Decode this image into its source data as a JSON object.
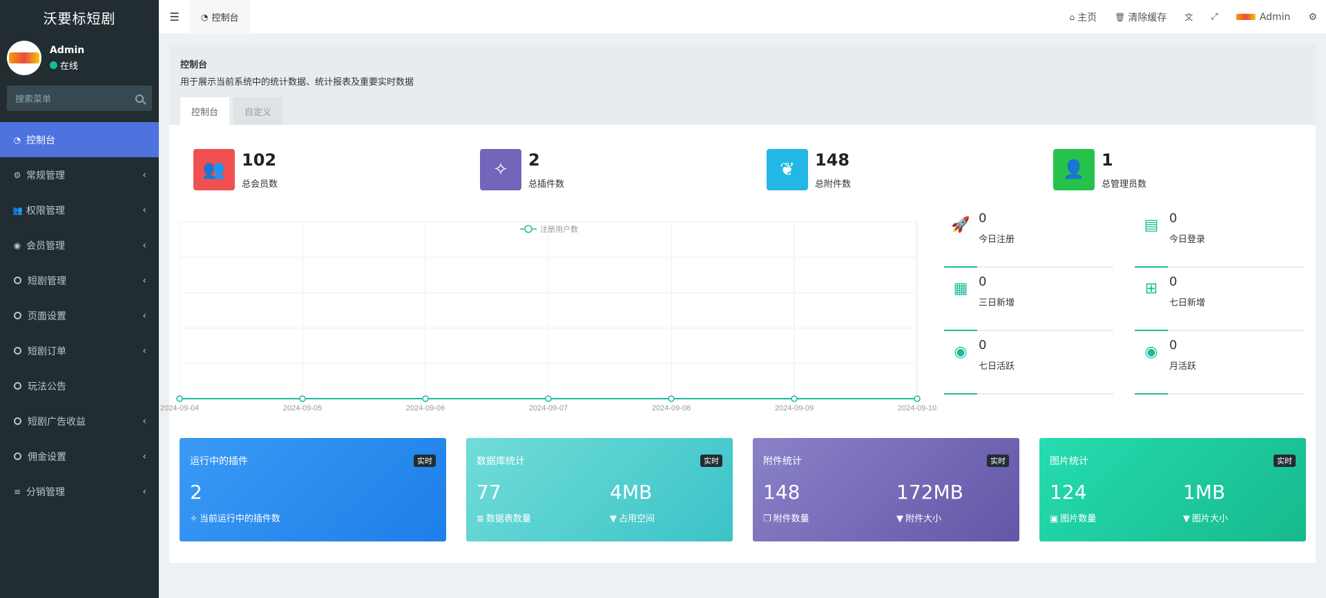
{
  "brand": "沃要标短剧",
  "user": {
    "name": "Admin",
    "status": "在线"
  },
  "search_placeholder": "搜索菜单",
  "menu": [
    {
      "label": "控制台",
      "icon": "dashboard-icon",
      "active": true,
      "chevron": false
    },
    {
      "label": "常规管理",
      "icon": "cogs-icon",
      "chevron": true
    },
    {
      "label": "权限管理",
      "icon": "group-icon",
      "chevron": true
    },
    {
      "label": "会员管理",
      "icon": "user-circle-icon",
      "chevron": true
    },
    {
      "label": "短剧管理",
      "icon": "circle-icon",
      "chevron": true
    },
    {
      "label": "页面设置",
      "icon": "circle-icon",
      "chevron": true
    },
    {
      "label": "短剧订单",
      "icon": "circle-icon",
      "chevron": true
    },
    {
      "label": "玩法公告",
      "icon": "circle-icon",
      "chevron": false
    },
    {
      "label": "短剧广告收益",
      "icon": "circle-icon",
      "chevron": true
    },
    {
      "label": "佣金设置",
      "icon": "circle-icon",
      "chevron": true
    },
    {
      "label": "分销管理",
      "icon": "list-icon",
      "chevron": true
    }
  ],
  "header": {
    "tab": "控制台",
    "home": "主页",
    "clear_cache": "清除缓存",
    "admin": "Admin"
  },
  "page": {
    "title": "控制台",
    "desc": "用于展示当前系统中的统计数据、统计报表及重要实时数据",
    "tabs": [
      "控制台",
      "自定义"
    ]
  },
  "stats": [
    {
      "value": "102",
      "label": "总会员数",
      "color": "#f05050",
      "icon": "users-icon"
    },
    {
      "value": "2",
      "label": "总插件数",
      "color": "#7266ba",
      "icon": "magic-icon"
    },
    {
      "value": "148",
      "label": "总附件数",
      "color": "#23b7e5",
      "icon": "leaf-icon"
    },
    {
      "value": "1",
      "label": "总管理员数",
      "color": "#27c24c",
      "icon": "user-icon"
    }
  ],
  "chart_data": {
    "type": "line",
    "legend": "注册用户数",
    "categories": [
      "2024-09-04",
      "2024-09-05",
      "2024-09-06",
      "2024-09-07",
      "2024-09-08",
      "2024-09-09",
      "2024-09-10"
    ],
    "series": [
      {
        "name": "注册用户数",
        "values": [
          0,
          0,
          0,
          0,
          0,
          0,
          0
        ]
      }
    ],
    "grid": true,
    "legend_position": "top-center",
    "color": "#18bc9c"
  },
  "mini_stats": [
    {
      "value": "0",
      "label": "今日注册",
      "icon": "rocket-icon"
    },
    {
      "value": "0",
      "label": "今日登录",
      "icon": "vcard-icon"
    },
    {
      "value": "0",
      "label": "三日新增",
      "icon": "calendar-icon"
    },
    {
      "value": "0",
      "label": "七日新增",
      "icon": "calendar-plus-icon"
    },
    {
      "value": "0",
      "label": "七日活跃",
      "icon": "user-circle-icon"
    },
    {
      "value": "0",
      "label": "月活跃",
      "icon": "user-circle-icon"
    }
  ],
  "cards": [
    {
      "title": "运行中的插件",
      "badge": "实时",
      "values": [
        {
          "val": "2",
          "sub": "当前运行中的插件数",
          "icon": "magic-icon"
        }
      ],
      "gradient": [
        "#3a9af5",
        "#1d7fe8"
      ]
    },
    {
      "title": "数据库统计",
      "badge": "实时",
      "values": [
        {
          "val": "77",
          "sub": "数据表数量",
          "icon": "database-icon"
        },
        {
          "val": "4MB",
          "sub": "占用空间",
          "icon": "filter-icon"
        }
      ],
      "gradient": [
        "#72dcd8",
        "#3ac3c8"
      ]
    },
    {
      "title": "附件统计",
      "badge": "实时",
      "values": [
        {
          "val": "148",
          "sub": "附件数量",
          "icon": "copy-icon"
        },
        {
          "val": "172MB",
          "sub": "附件大小",
          "icon": "filter-icon"
        }
      ],
      "gradient": [
        "#8a82c8",
        "#6356a7"
      ]
    },
    {
      "title": "图片统计",
      "badge": "实时",
      "values": [
        {
          "val": "124",
          "sub": "图片数量",
          "icon": "image-icon"
        },
        {
          "val": "1MB",
          "sub": "图片大小",
          "icon": "filter-icon"
        }
      ],
      "gradient": [
        "#25dcb0",
        "#17b98c"
      ]
    }
  ]
}
